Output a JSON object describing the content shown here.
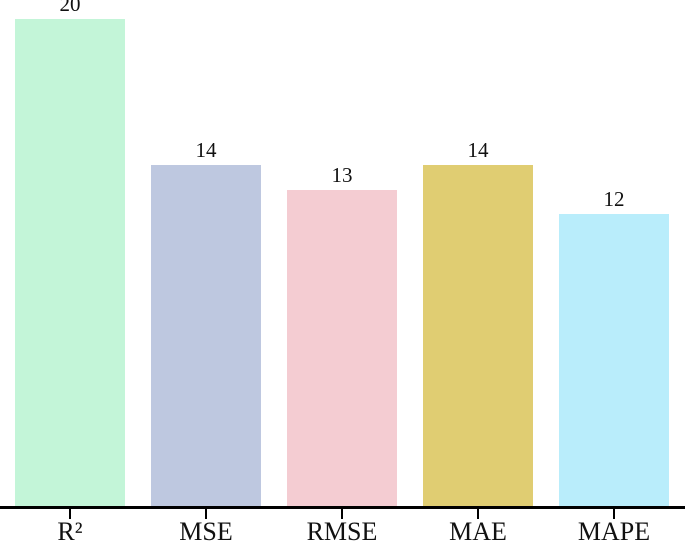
{
  "chart_data": {
    "type": "bar",
    "categories": [
      "R²",
      "MSE",
      "RMSE",
      "MAE",
      "MAPE"
    ],
    "values": [
      20,
      14,
      13,
      14,
      12
    ],
    "bar_colors": [
      "#c3f5d8",
      "#bec8e0",
      "#f4ccd2",
      "#e0cd72",
      "#b9edfb"
    ],
    "title": "",
    "xlabel": "",
    "ylabel": "",
    "ylim": [
      0,
      20.8
    ],
    "grid": false,
    "legend": "none",
    "axis_color": "#000000",
    "label_color": "#111111"
  }
}
